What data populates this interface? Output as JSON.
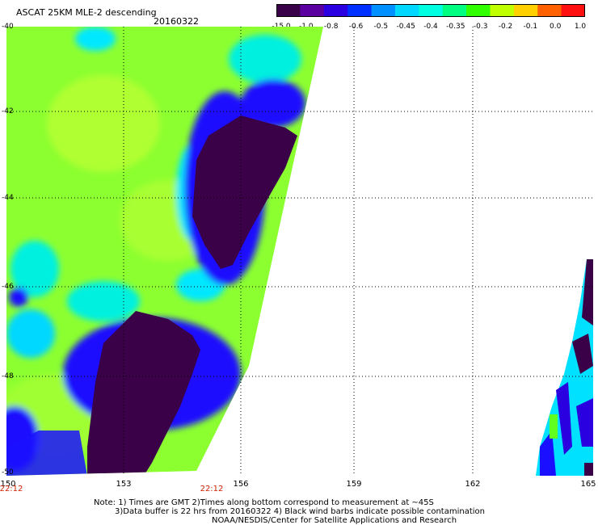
{
  "title": "ASCAT 25KM MLE-2 descending",
  "date": "20160322",
  "colorbar": {
    "labels": [
      "-15.0",
      "-1.0",
      "-0.8",
      "-0.6",
      "-0.5",
      "-0.45",
      "-0.4",
      "-0.35",
      "-0.3",
      "-0.2",
      "-0.1",
      "0.0",
      "1.0"
    ],
    "colors": [
      "#3a0048",
      "#5a00a0",
      "#2a00e0",
      "#0030ff",
      "#0090ff",
      "#00d8ff",
      "#00ffe0",
      "#00ff80",
      "#30ff00",
      "#c0ff00",
      "#ffd000",
      "#ff6000",
      "#ff1010"
    ]
  },
  "map": {
    "lat_labels": [
      "-40",
      "-42",
      "-44",
      "-46",
      "-48",
      "-50"
    ],
    "lon_labels": [
      "150",
      "153",
      "156",
      "159",
      "162",
      "165"
    ],
    "time_labels": [
      "22:12",
      "22:12"
    ],
    "colors": {
      "purple": "#3a0048",
      "blue": "#1a00e6",
      "cyan": "#00e0ff",
      "green": "#60ff20",
      "yellowgreen": "#9cff20"
    }
  },
  "notes": [
    "Note: 1) Times are GMT 2)Times along bottom correspond to measurement at ~45S",
    "3)Data buffer is 22 hrs from 20160322 4) Black wind barbs indicate possible contamination",
    "NOAA/NESDIS/Center for Satellite Applications and Research"
  ]
}
